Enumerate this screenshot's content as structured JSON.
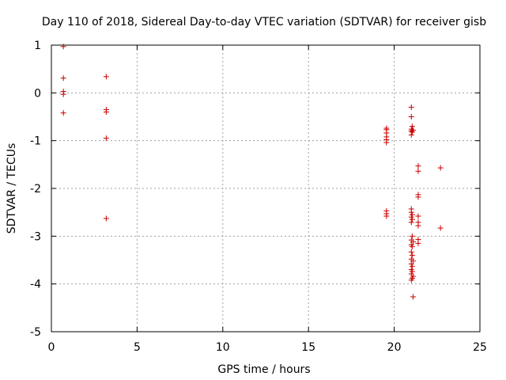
{
  "chart_data": {
    "type": "scatter",
    "title": "Day 110 of 2018, Sidereal Day-to-day VTEC variation (SDTVAR) for receiver gisb",
    "xlabel": "GPS time / hours",
    "ylabel": "SDTVAR / TECUs",
    "xlim": [
      0,
      25
    ],
    "ylim": [
      -5,
      1
    ],
    "xticks": [
      0,
      5,
      10,
      15,
      20,
      25
    ],
    "yticks": [
      -5,
      -4,
      -3,
      -2,
      -1,
      0,
      1
    ],
    "grid": true,
    "marker": "+",
    "marker_color": "#cc0000",
    "series": [
      {
        "name": "SDTVAR",
        "points": [
          [
            0.7,
            0.97
          ],
          [
            0.7,
            0.31
          ],
          [
            0.7,
            0.03
          ],
          [
            0.7,
            -0.03
          ],
          [
            0.7,
            -0.42
          ],
          [
            3.2,
            0.34
          ],
          [
            3.2,
            -0.35
          ],
          [
            3.2,
            -0.4
          ],
          [
            3.2,
            -0.95
          ],
          [
            3.2,
            -2.63
          ],
          [
            19.55,
            -0.74
          ],
          [
            19.55,
            -0.77
          ],
          [
            19.55,
            -0.84
          ],
          [
            19.55,
            -0.92
          ],
          [
            19.55,
            -0.98
          ],
          [
            19.55,
            -1.04
          ],
          [
            19.55,
            -2.47
          ],
          [
            19.55,
            -2.53
          ],
          [
            19.55,
            -2.58
          ],
          [
            21.0,
            -0.3
          ],
          [
            21.0,
            -0.5
          ],
          [
            21.05,
            -0.7
          ],
          [
            21.0,
            -0.76
          ],
          [
            21.1,
            -0.78
          ],
          [
            21.0,
            -0.8
          ],
          [
            21.05,
            -0.82
          ],
          [
            21.0,
            -0.88
          ],
          [
            21.0,
            -2.43
          ],
          [
            21.0,
            -2.5
          ],
          [
            21.05,
            -2.55
          ],
          [
            21.0,
            -2.6
          ],
          [
            21.05,
            -2.65
          ],
          [
            21.0,
            -2.71
          ],
          [
            21.05,
            -3.0
          ],
          [
            21.0,
            -3.08
          ],
          [
            21.1,
            -3.12
          ],
          [
            21.0,
            -3.18
          ],
          [
            21.05,
            -3.22
          ],
          [
            21.0,
            -3.33
          ],
          [
            21.05,
            -3.4
          ],
          [
            21.0,
            -3.48
          ],
          [
            21.1,
            -3.52
          ],
          [
            21.0,
            -3.58
          ],
          [
            21.05,
            -3.63
          ],
          [
            21.0,
            -3.7
          ],
          [
            21.05,
            -3.74
          ],
          [
            21.0,
            -3.79
          ],
          [
            21.1,
            -3.84
          ],
          [
            21.05,
            -3.88
          ],
          [
            21.0,
            -3.92
          ],
          [
            21.1,
            -4.27
          ],
          [
            21.4,
            -1.53
          ],
          [
            21.4,
            -1.64
          ],
          [
            21.4,
            -2.13
          ],
          [
            21.4,
            -2.18
          ],
          [
            21.4,
            -2.58
          ],
          [
            21.4,
            -2.71
          ],
          [
            21.4,
            -2.78
          ],
          [
            21.4,
            -3.07
          ],
          [
            21.4,
            -3.15
          ],
          [
            22.7,
            -1.57
          ],
          [
            22.7,
            -2.83
          ]
        ]
      }
    ]
  }
}
